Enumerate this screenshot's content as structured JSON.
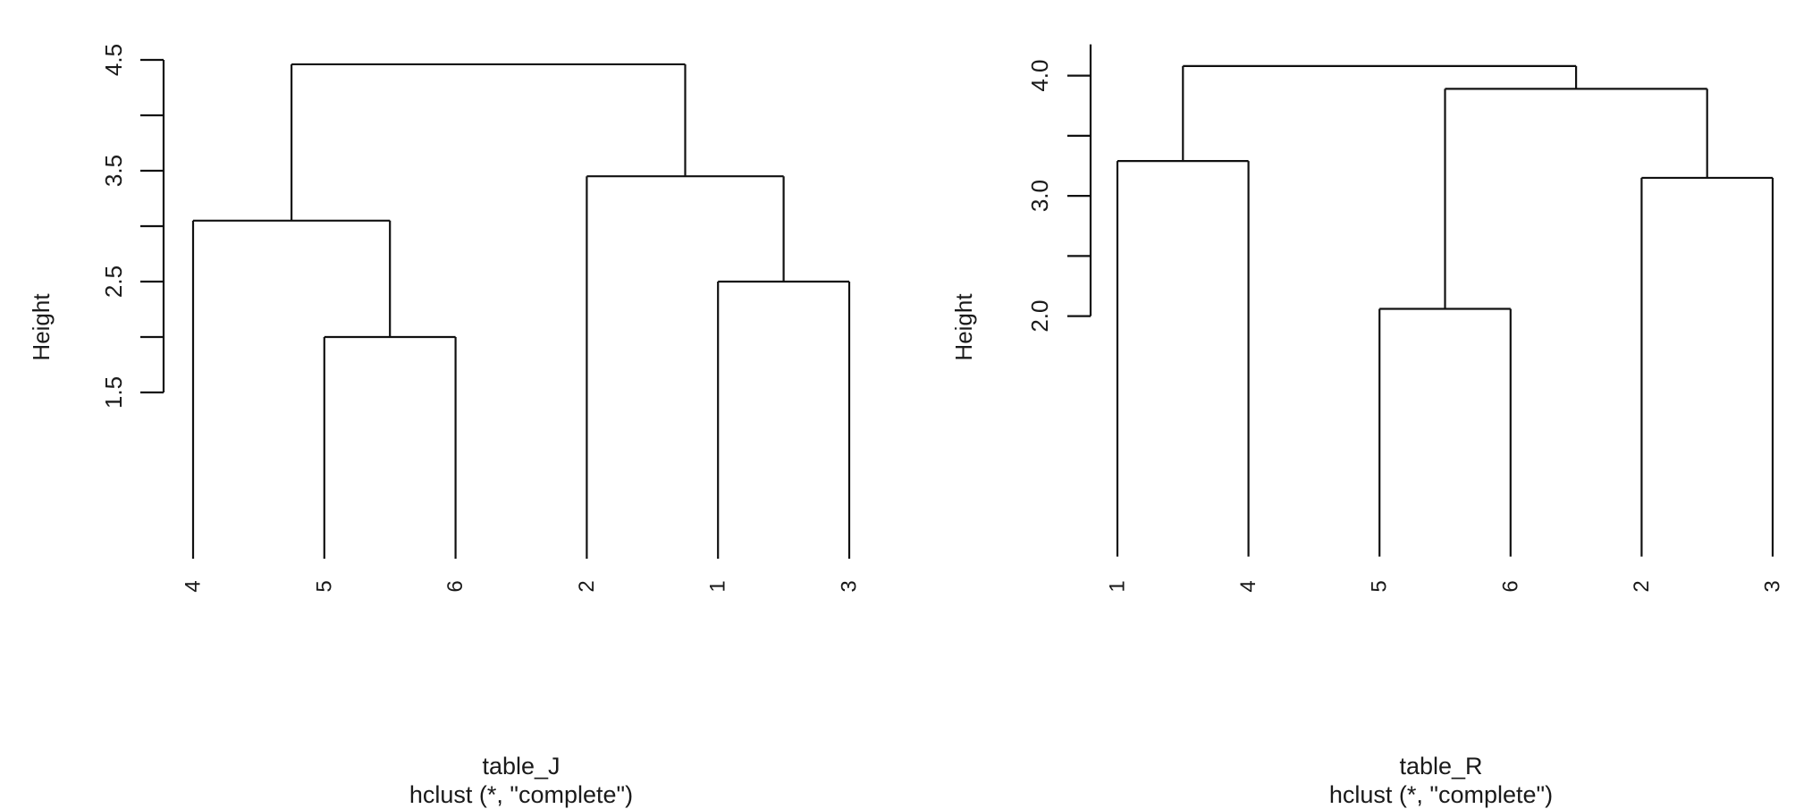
{
  "chart_data": [
    {
      "type": "dendrogram",
      "title": "table_J",
      "subtitle": "hclust (*, \"complete\")",
      "ylabel": "Height",
      "leaf_order": [
        "4",
        "5",
        "6",
        "2",
        "1",
        "3"
      ],
      "merges": [
        {
          "a": "5",
          "b": "6",
          "height": 2.0
        },
        {
          "a": "1",
          "b": "3",
          "height": 2.5
        },
        {
          "a": "4",
          "b": "m1",
          "height": 3.05
        },
        {
          "a": "2",
          "b": "m2",
          "height": 3.45
        },
        {
          "a": "m3",
          "b": "m4",
          "height": 4.46
        }
      ],
      "yticks": [
        1.5,
        2.0,
        2.5,
        3.0,
        3.5,
        4.0,
        4.5
      ],
      "ytick_labels": [
        "1.5",
        "",
        "2.5",
        "",
        "3.5",
        "",
        "4.5"
      ],
      "axis_range": [
        1.5,
        4.5
      ]
    },
    {
      "type": "dendrogram",
      "title": "table_R",
      "subtitle": "hclust (*, \"complete\")",
      "ylabel": "Height",
      "leaf_order": [
        "1",
        "4",
        "5",
        "6",
        "2",
        "3"
      ],
      "merges": [
        {
          "a": "5",
          "b": "6",
          "height": 2.06
        },
        {
          "a": "2",
          "b": "3",
          "height": 3.15
        },
        {
          "a": "1",
          "b": "4",
          "height": 3.29
        },
        {
          "a": "m1",
          "b": "m2",
          "height": 3.89
        },
        {
          "a": "m3",
          "b": "m4",
          "height": 4.08
        }
      ],
      "yticks": [
        2.0,
        2.5,
        3.0,
        3.5,
        4.0
      ],
      "ytick_labels": [
        "2.0",
        "",
        "3.0",
        "",
        "4.0"
      ],
      "axis_range": [
        2.0,
        4.26
      ]
    }
  ]
}
